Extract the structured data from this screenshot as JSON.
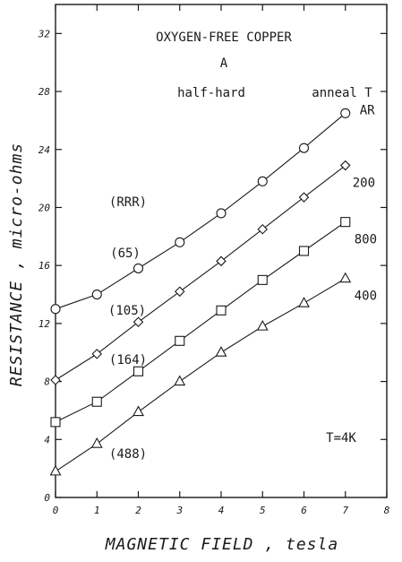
{
  "chart_data": {
    "type": "line",
    "title": "OXYGEN-FREE COPPER",
    "subtitle": "A",
    "condition": "half-hard",
    "legend_title": "anneal T",
    "rrr_header": "(RRR)",
    "temperature_note": "T=4K",
    "xlabel": "MAGNETIC FIELD , tesla",
    "ylabel": "RESISTANCE , micro-ohms",
    "xlim": [
      0,
      8
    ],
    "ylim": [
      0,
      34
    ],
    "x_ticks": [
      "0",
      "1",
      "2",
      "3",
      "4",
      "5",
      "6",
      "7",
      "8"
    ],
    "y_ticks": [
      "0",
      "4",
      "8",
      "12",
      "16",
      "20",
      "24",
      "28",
      "32"
    ],
    "x": [
      0,
      1,
      2,
      3,
      4,
      5,
      6,
      7
    ],
    "series": [
      {
        "name": "AR",
        "marker": "circle",
        "rrr": "(65)",
        "values": [
          13.0,
          14.0,
          15.8,
          17.6,
          19.6,
          21.8,
          24.1,
          26.5
        ]
      },
      {
        "name": "200",
        "marker": "diamond",
        "rrr": "(105)",
        "values": [
          8.1,
          9.9,
          12.1,
          14.2,
          16.3,
          18.5,
          20.7,
          22.9
        ]
      },
      {
        "name": "800",
        "marker": "square",
        "rrr": "(164)",
        "values": [
          5.2,
          6.6,
          8.7,
          10.8,
          12.9,
          15.0,
          17.0,
          19.0
        ]
      },
      {
        "name": "400",
        "marker": "triangle",
        "rrr": "(488)",
        "values": [
          1.8,
          3.7,
          5.9,
          8.0,
          10.0,
          11.8,
          13.4,
          15.1
        ]
      }
    ]
  }
}
